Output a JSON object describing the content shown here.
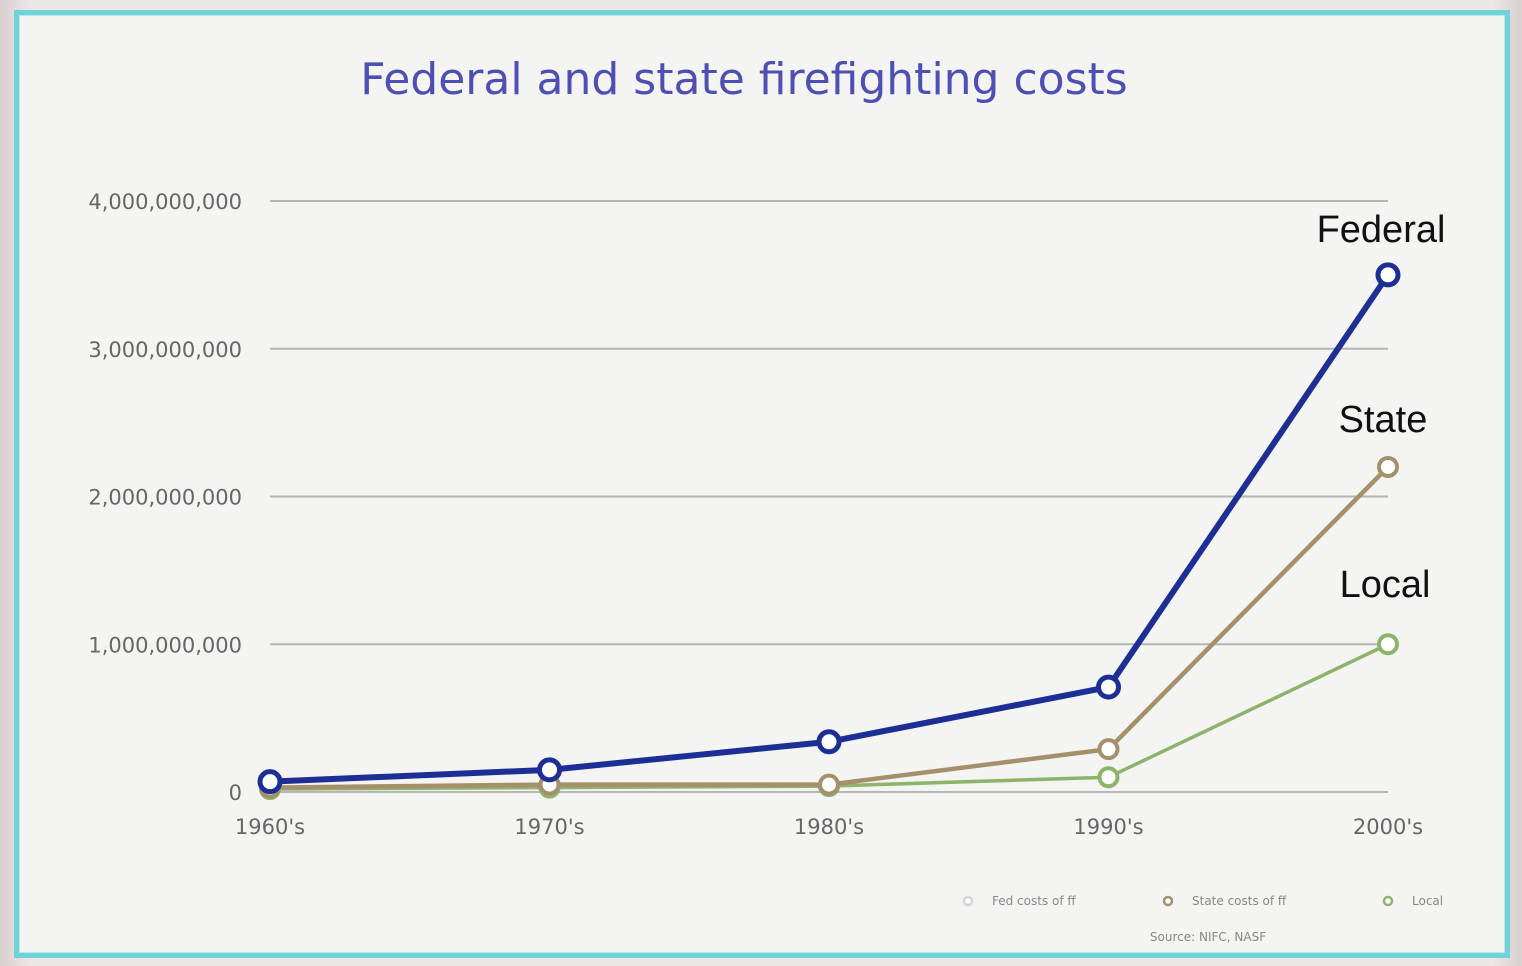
{
  "chart_data": {
    "type": "line",
    "title": "Federal and state firefighting costs",
    "xlabel": "",
    "ylabel": "",
    "categories": [
      "1960's",
      "1970's",
      "1980's",
      "1990's",
      "2000's"
    ],
    "ylim": [
      0,
      4000000000
    ],
    "yticks": [
      {
        "value": 0,
        "label": "0"
      },
      {
        "value": 1000000000,
        "label": "1,000,000,000"
      },
      {
        "value": 2000000000,
        "label": "2,000,000,000"
      },
      {
        "value": 3000000000,
        "label": "3,000,000,000"
      },
      {
        "value": 4000000000,
        "label": "4,000,000,000"
      }
    ],
    "grid": true,
    "series": [
      {
        "name": "Fed costs of ff",
        "label": "Federal",
        "color": "#1d2f95",
        "values": [
          70000000,
          150000000,
          340000000,
          710000000,
          3500000000
        ]
      },
      {
        "name": "State costs of ff",
        "label": "State",
        "color": "#a68f6b",
        "values": [
          30000000,
          50000000,
          50000000,
          290000000,
          2200000000
        ]
      },
      {
        "name": "Local",
        "label": "Local",
        "color": "#8db46a",
        "values": [
          20000000,
          30000000,
          40000000,
          100000000,
          1000000000
        ]
      }
    ],
    "legend": {
      "placement": "bottom-right",
      "entries": [
        {
          "text": "Fed costs of ff",
          "color": "#d6d6d6"
        },
        {
          "text": "State costs of ff",
          "color": "#a68f6b"
        },
        {
          "text": "Local",
          "color": "#8db46a"
        }
      ]
    },
    "source": "Source: NIFC, NASF"
  }
}
